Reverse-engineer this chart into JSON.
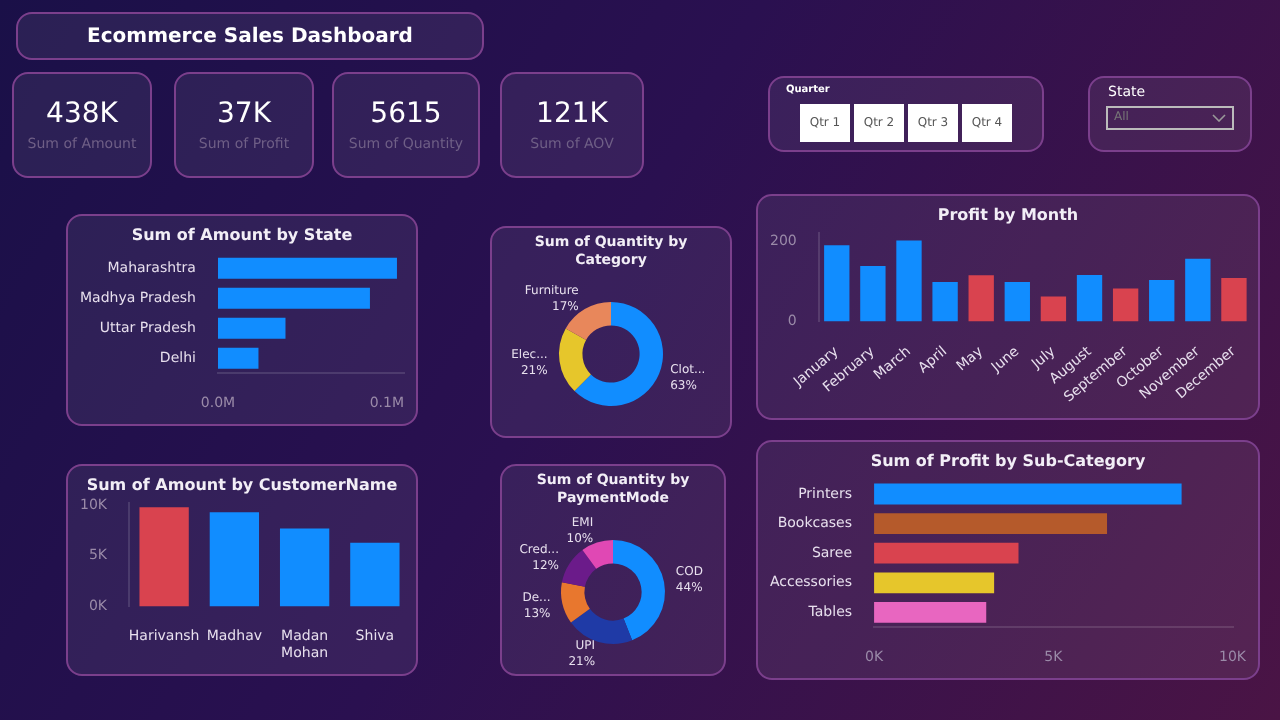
{
  "chart_data": [
    {
      "type": "other",
      "title": "Ecommerce Sales Dashboard",
      "annotations": [
        "438K",
        "Sum of Amount",
        "37K",
        "Sum of Profit",
        "5615",
        "Sum of Quantity",
        "121K",
        "Sum of AOV"
      ]
    },
    {
      "type": "other",
      "title": "Quarter",
      "annotations": [
        "Qtr 1",
        "Qtr 2",
        "Qtr 3",
        "Qtr 4"
      ]
    },
    {
      "type": "other",
      "title": "State",
      "annotations": [
        "All"
      ]
    },
    {
      "type": "bar",
      "orientation": "horizontal",
      "title": "Sum of Amount by State",
      "categories": [
        "Maharashtra",
        "Madhya Pradesh",
        "Uttar Pradesh",
        "Delhi"
      ],
      "values": [
        0.106,
        0.09,
        0.04,
        0.024
      ],
      "color": "#118dff",
      "xlim": [
        0,
        0.11
      ],
      "xticks": [
        {
          "value": 0,
          "label": "0.0M"
        },
        {
          "value": 0.1,
          "label": "0.1M"
        }
      ]
    },
    {
      "type": "donut",
      "title": "Sum of Quantity by Category",
      "categories": [
        "Clot...",
        "Elec...",
        "Furniture"
      ],
      "values": [
        63,
        21,
        17
      ],
      "value_labels": [
        "63%",
        "21%",
        "17%"
      ],
      "colors": [
        "#118dff",
        "#e6c62b",
        "#e8875b"
      ]
    },
    {
      "type": "bar",
      "title": "Profit by Month",
      "categories": [
        "January",
        "February",
        "March",
        "April",
        "May",
        "June",
        "July",
        "August",
        "September",
        "October",
        "November",
        "December"
      ],
      "values": [
        190,
        138,
        202,
        98,
        115,
        98,
        62,
        116,
        82,
        103,
        156,
        108
      ],
      "colors": [
        "#118dff",
        "#118dff",
        "#118dff",
        "#118dff",
        "#d9434f",
        "#118dff",
        "#d9434f",
        "#118dff",
        "#d9434f",
        "#118dff",
        "#118dff",
        "#d9434f"
      ],
      "ylim": [
        0,
        220
      ],
      "yticks": [
        0,
        200
      ]
    },
    {
      "type": "bar",
      "title": "Sum of Amount by CustomerName",
      "categories": [
        "Harivansh",
        "Madhav",
        "Madan Mohan",
        "Shiva"
      ],
      "values": [
        9.8,
        9.3,
        7.7,
        6.3
      ],
      "colors": [
        "#d9434f",
        "#118dff",
        "#118dff",
        "#118dff"
      ],
      "ylim": [
        0,
        10.2
      ],
      "yticks": [
        {
          "value": 0,
          "label": "0K"
        },
        {
          "value": 5,
          "label": "5K"
        },
        {
          "value": 10,
          "label": "10K"
        }
      ]
    },
    {
      "type": "donut",
      "title": "Sum of Quantity by PaymentMode",
      "categories": [
        "COD",
        "UPI",
        "De...",
        "Cred...",
        "EMI"
      ],
      "values": [
        44,
        21,
        13,
        12,
        10
      ],
      "value_labels": [
        "44%",
        "21%",
        "13%",
        "12%",
        "10%"
      ],
      "colors": [
        "#118dff",
        "#1f3aa6",
        "#e8772e",
        "#6b1b8a",
        "#e048b4"
      ]
    },
    {
      "type": "bar",
      "orientation": "horizontal",
      "title": "Sum of Profit by Sub-Category",
      "categories": [
        "Printers",
        "Bookcases",
        "Saree",
        "Accessories",
        "Tables"
      ],
      "values": [
        8.58,
        6.5,
        4.03,
        3.35,
        3.13
      ],
      "colors": [
        "#118dff",
        "#b55a2b",
        "#d9434f",
        "#e6c62b",
        "#e866c0"
      ],
      "xlim": [
        0,
        10
      ],
      "xticks": [
        {
          "value": 0,
          "label": "0K"
        },
        {
          "value": 5,
          "label": "5K"
        },
        {
          "value": 10,
          "label": "10K"
        }
      ]
    }
  ]
}
